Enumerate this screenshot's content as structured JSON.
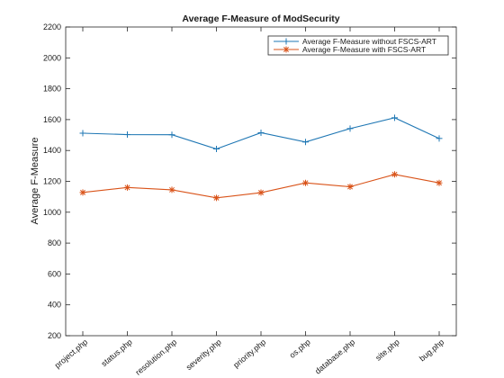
{
  "chart_data": {
    "type": "line",
    "title": "Average F-Measure of ModSecurity",
    "xlabel": "",
    "ylabel": "Average F-Measure",
    "categories": [
      "project.php",
      "status.php",
      "resolution.php",
      "severity.php",
      "priority.php",
      "os.php",
      "database.php",
      "site.php",
      "bug.php"
    ],
    "ylim": [
      200,
      2200
    ],
    "yticks": [
      200,
      400,
      600,
      800,
      1000,
      1200,
      1400,
      1600,
      1800,
      2000,
      2200
    ],
    "grid": false,
    "legend_position": "top-right",
    "series": [
      {
        "name": "Average F-Measure without FSCS-ART",
        "color": "#1f77b4",
        "marker": "plus",
        "values": [
          1512,
          1503,
          1502,
          1410,
          1515,
          1455,
          1542,
          1612,
          1478
        ]
      },
      {
        "name": "Average F-Measure with FSCS-ART",
        "color": "#d95319",
        "marker": "asterisk",
        "values": [
          1128,
          1160,
          1145,
          1093,
          1127,
          1190,
          1165,
          1245,
          1190
        ]
      }
    ]
  }
}
